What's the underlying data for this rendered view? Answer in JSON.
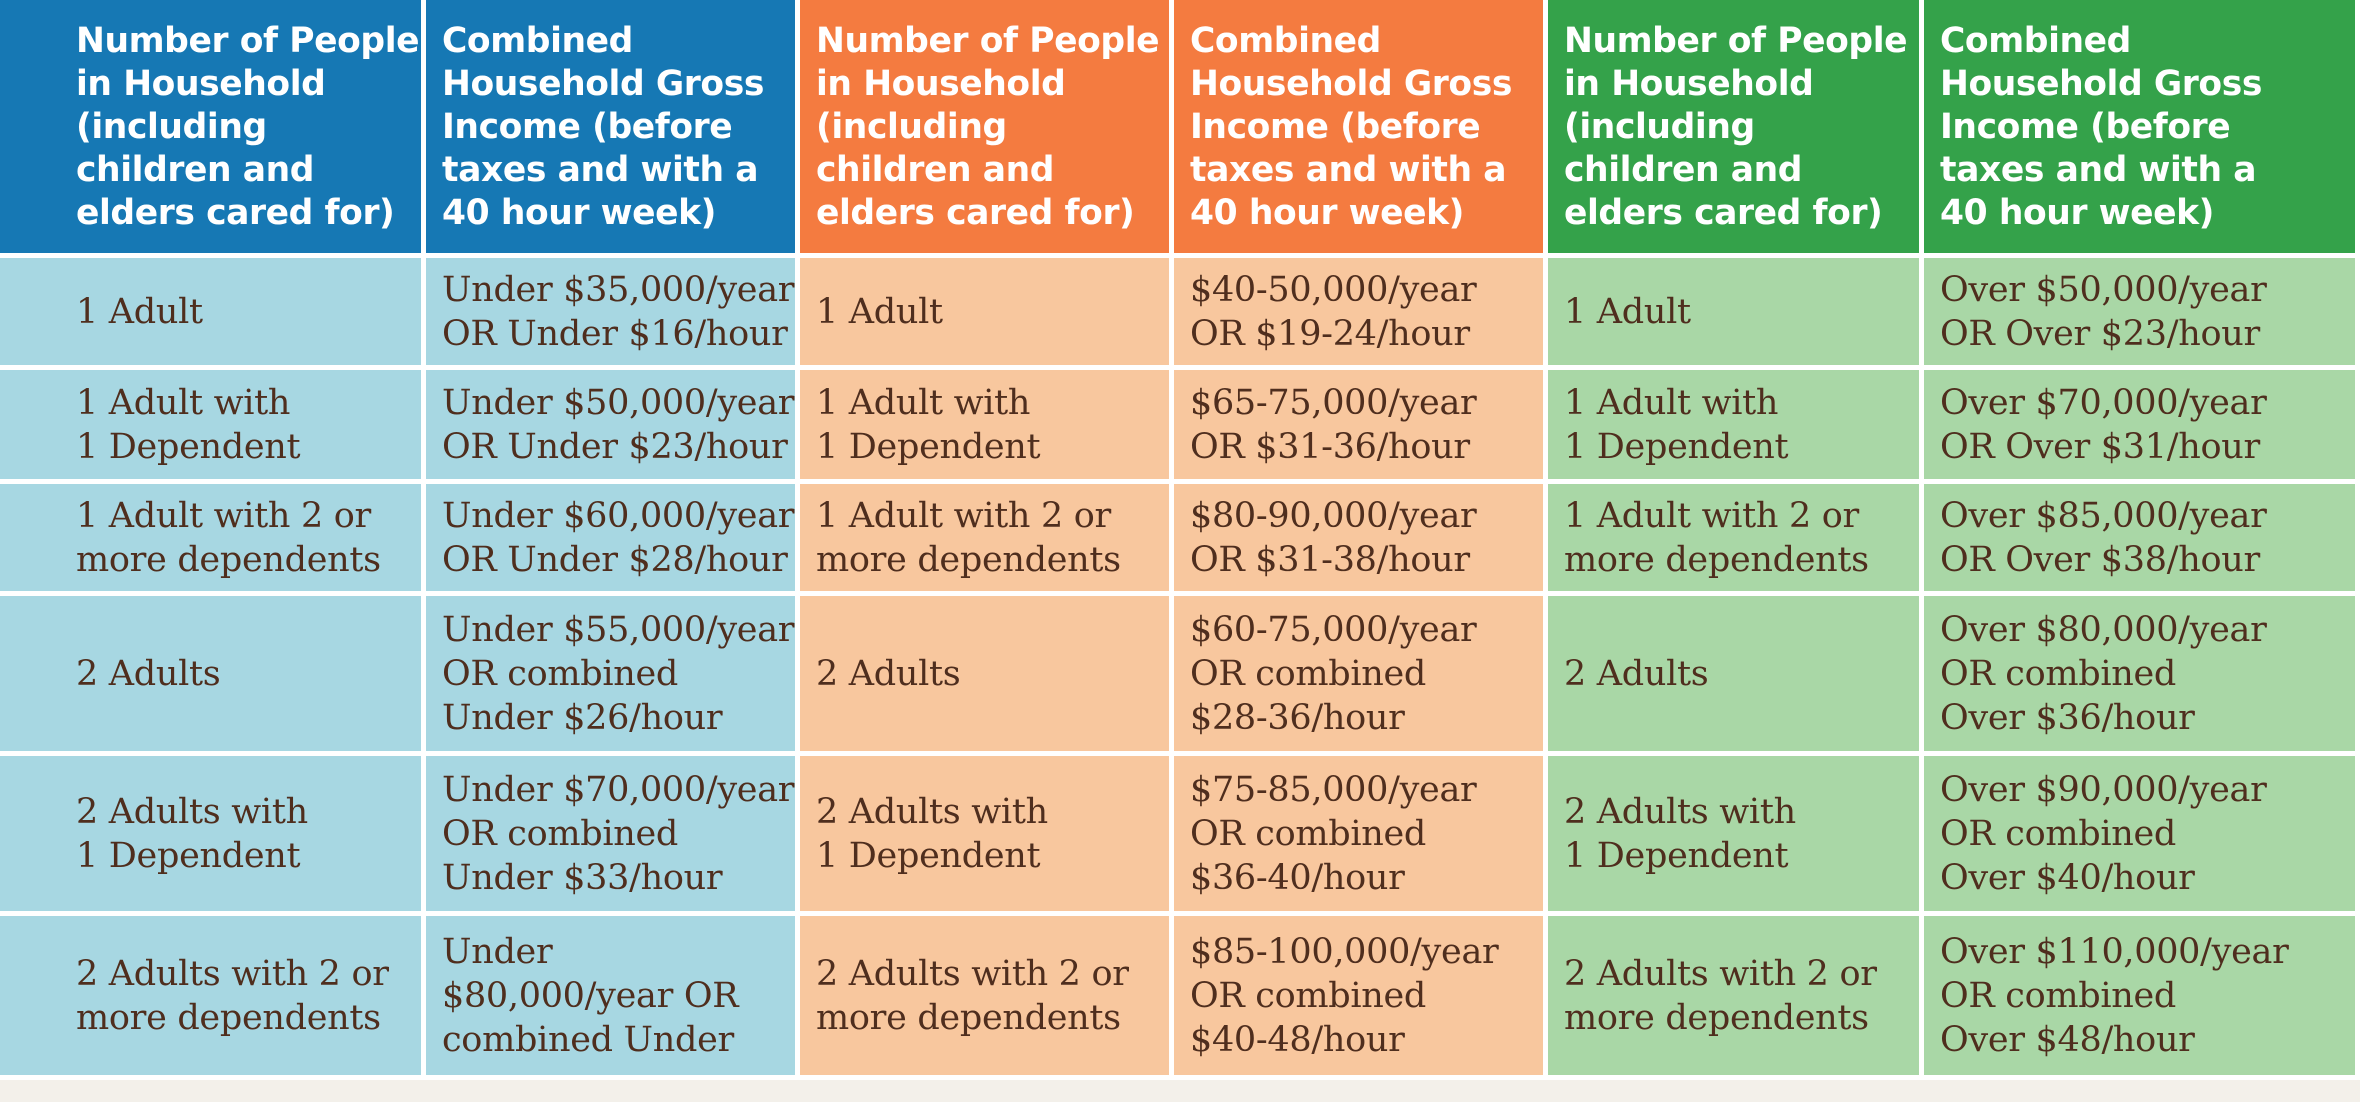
{
  "colors": {
    "blue_header": "#1678b4",
    "orange_header": "#f47b40",
    "green_header": "#34a24a",
    "blue_body": "#a7d7e2",
    "orange_body": "#f8c79e",
    "green_body": "#a9d7a6",
    "body_text": "#4f2e1e",
    "header_text": "#ffffff"
  },
  "headers": {
    "blue_household": "Number of People\nin Household\n(including\nchildren and\nelders cared for)",
    "blue_income": "Combined\nHousehold Gross\nIncome (before\ntaxes and with a\n40 hour week)",
    "orange_household": "Number of People\nin Household\n(including\nchildren and\nelders cared for)",
    "orange_income": "Combined\nHousehold Gross\nIncome (before\ntaxes and with a\n40 hour week)",
    "green_household": "Number of People\nin Household\n(including\nchildren and\nelders cared for)",
    "green_income": "Combined\nHousehold Gross\nIncome (before\ntaxes and with a\n40 hour week)"
  },
  "rows": [
    {
      "blue_household": "1 Adult",
      "blue_income": "Under $35,000/year\nOR Under $16/hour",
      "orange_household": "1 Adult",
      "orange_income": "$40-50,000/year\nOR $19-24/hour",
      "green_household": "1 Adult",
      "green_income": "Over $50,000/year\nOR Over $23/hour"
    },
    {
      "blue_household": "1 Adult with\n1 Dependent",
      "blue_income": "Under $50,000/year\nOR Under $23/hour",
      "orange_household": "1 Adult with\n1 Dependent",
      "orange_income": "$65-75,000/year\nOR $31-36/hour",
      "green_household": "1 Adult with\n1 Dependent",
      "green_income": "Over $70,000/year\nOR Over $31/hour"
    },
    {
      "blue_household": "1 Adult with 2 or\nmore dependents",
      "blue_income": "Under $60,000/year\nOR Under $28/hour",
      "orange_household": "1 Adult with 2 or\nmore dependents",
      "orange_income": "$80-90,000/year\nOR $31-38/hour",
      "green_household": "1 Adult with 2 or\nmore dependents",
      "green_income": "Over $85,000/year\nOR Over $38/hour"
    },
    {
      "blue_household": "2 Adults",
      "blue_income": "Under $55,000/year\nOR combined\nUnder $26/hour",
      "orange_household": "2 Adults",
      "orange_income": "$60-75,000/year\nOR combined\n$28-36/hour",
      "green_household": "2 Adults",
      "green_income": "Over $80,000/year\nOR combined\nOver $36/hour"
    },
    {
      "blue_household": "2 Adults with\n1 Dependent",
      "blue_income": "Under $70,000/year\nOR combined\nUnder $33/hour",
      "orange_household": "2 Adults with\n1 Dependent",
      "orange_income": "$75-85,000/year\nOR combined\n$36-40/hour",
      "green_household": "2 Adults with\n1 Dependent",
      "green_income": "Over $90,000/year\nOR combined\nOver $40/hour"
    },
    {
      "blue_household": "2 Adults with 2 or\nmore dependents",
      "blue_income": "Under\n$80,000/year OR\ncombined Under",
      "orange_household": "2 Adults with 2 or\nmore dependents",
      "orange_income": "$85-100,000/year\nOR combined\n$40-48/hour",
      "green_household": "2 Adults with 2 or\nmore dependents",
      "green_income": "Over $110,000/year\nOR combined\nOver $48/hour"
    }
  ]
}
